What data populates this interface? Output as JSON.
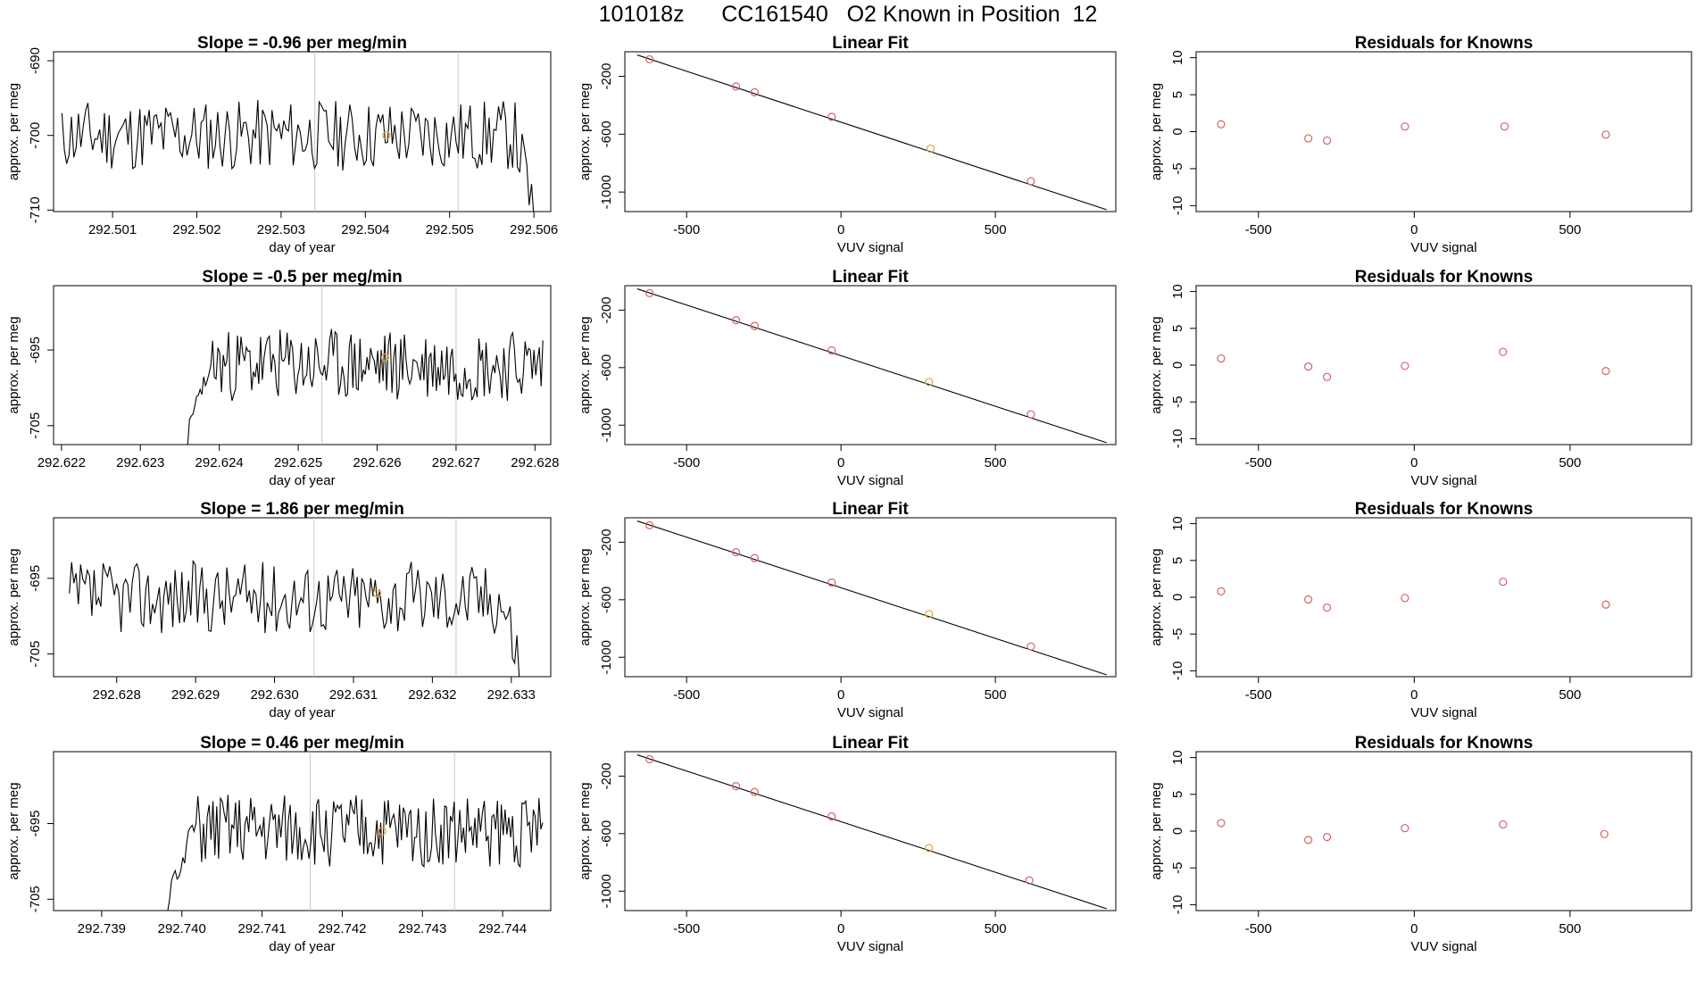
{
  "figure": {
    "title": "101018z      CC161540   O2 Known in Position  12"
  },
  "colors": {
    "trace": "#000000",
    "frame": "#000000",
    "vline": "#c8c8c8",
    "point": "#d26464",
    "highlight": "#e6a03c"
  },
  "chart_data": [
    {
      "type": "line",
      "title": "Slope =  -0.96  per meg/min",
      "xlabel": "day of year",
      "ylabel": "approx. per meg",
      "xlim": [
        292.5003,
        292.5062
      ],
      "ylim": [
        -710.2,
        -688.8
      ],
      "xticks": [
        292.501,
        292.502,
        292.503,
        292.504,
        292.505,
        292.506
      ],
      "xtick_labels": [
        "292.501",
        "292.502",
        "292.503",
        "292.504",
        "292.505",
        "292.506"
      ],
      "yticks": [
        -690,
        -700,
        -710
      ],
      "ytick_labels": [
        "-690",
        "-700",
        "-710"
      ],
      "vlines": [
        292.5034,
        292.5051
      ],
      "x_start": 292.5004,
      "x_end": 292.506,
      "y_start": -697,
      "y_end": -711,
      "base": -700,
      "amplitude": 3,
      "tail_drop": 10,
      "highlight_point": [
        292.50425,
        -700.0
      ],
      "seed": 11
    },
    {
      "type": "scatter",
      "title": "Linear Fit",
      "xlabel": "VUV signal",
      "ylabel": "approx. per meg",
      "xlim": [
        -700,
        890
      ],
      "ylim": [
        -1135,
        -30
      ],
      "xticks": [
        -500,
        0,
        500
      ],
      "xtick_labels": [
        "-500",
        "0",
        "500"
      ],
      "yticks": [
        -200,
        -600,
        -1000
      ],
      "ytick_labels": [
        "-200",
        "-600",
        "-1000"
      ],
      "fit_line": {
        "x": [
          -660,
          860
        ],
        "y": [
          -52,
          -1122
        ]
      },
      "points": [
        {
          "x": -620,
          "y": -82
        },
        {
          "x": -340,
          "y": -270
        },
        {
          "x": -280,
          "y": -310
        },
        {
          "x": -30,
          "y": -480
        },
        {
          "x": 290,
          "y": -700
        },
        {
          "x": 615,
          "y": -925
        }
      ],
      "highlight_index": 4
    },
    {
      "type": "scatter",
      "title": "Residuals for Knowns",
      "xlabel": "VUV signal",
      "ylabel": "approx. per meg",
      "xlim": [
        -700,
        890
      ],
      "ylim": [
        -10.8,
        10.8
      ],
      "xticks": [
        -500,
        0,
        500
      ],
      "xtick_labels": [
        "-500",
        "0",
        "500"
      ],
      "yticks": [
        10,
        5,
        0,
        -5,
        -10
      ],
      "ytick_labels": [
        "10",
        "5",
        "0",
        "-5",
        "-10"
      ],
      "points": [
        {
          "x": -620,
          "y": 1.0
        },
        {
          "x": -340,
          "y": -0.9
        },
        {
          "x": -280,
          "y": -1.2
        },
        {
          "x": -30,
          "y": 0.7
        },
        {
          "x": 290,
          "y": 0.7
        },
        {
          "x": 615,
          "y": -0.4
        }
      ]
    },
    {
      "type": "line",
      "title": "Slope =  -0.5  per meg/min",
      "xlabel": "day of year",
      "ylabel": "approx. per meg",
      "xlim": [
        292.6219,
        292.6282
      ],
      "ylim": [
        -707.5,
        -686.5
      ],
      "xticks": [
        292.622,
        292.623,
        292.624,
        292.625,
        292.626,
        292.627,
        292.628
      ],
      "xtick_labels": [
        "292.622",
        "292.623",
        "292.624",
        "292.625",
        "292.626",
        "292.627",
        "292.628"
      ],
      "yticks": [
        -695,
        -705
      ],
      "ytick_labels": [
        "-695",
        "-705"
      ],
      "vlines": [
        292.6253,
        292.627
      ],
      "x_start": 292.6236,
      "x_end": 292.6281,
      "y_start": -707.5,
      "y_end": -696,
      "base": -697,
      "amplitude": 3,
      "tail_drop": 0,
      "head_rise": -705,
      "highlight_point": [
        292.6261,
        -696.0
      ],
      "seed": 23
    },
    {
      "type": "scatter",
      "title": "Linear Fit",
      "xlabel": "VUV signal",
      "ylabel": "approx. per meg",
      "xlim": [
        -700,
        890
      ],
      "ylim": [
        -1135,
        -30
      ],
      "xticks": [
        -500,
        0,
        500
      ],
      "xtick_labels": [
        "-500",
        "0",
        "500"
      ],
      "yticks": [
        -200,
        -600,
        -1000
      ],
      "ytick_labels": [
        "-200",
        "-600",
        "-1000"
      ],
      "fit_line": {
        "x": [
          -660,
          860
        ],
        "y": [
          -52,
          -1122
        ]
      },
      "points": [
        {
          "x": -620,
          "y": -82
        },
        {
          "x": -340,
          "y": -270
        },
        {
          "x": -280,
          "y": -310
        },
        {
          "x": -30,
          "y": -480
        },
        {
          "x": 285,
          "y": -700
        },
        {
          "x": 615,
          "y": -925
        }
      ],
      "highlight_index": 4
    },
    {
      "type": "scatter",
      "title": "Residuals for Knowns",
      "xlabel": "VUV signal",
      "ylabel": "approx. per meg",
      "xlim": [
        -700,
        890
      ],
      "ylim": [
        -10.8,
        10.8
      ],
      "xticks": [
        -500,
        0,
        500
      ],
      "xtick_labels": [
        "-500",
        "0",
        "500"
      ],
      "yticks": [
        10,
        5,
        0,
        -5,
        -10
      ],
      "ytick_labels": [
        "10",
        "5",
        "0",
        "-5",
        "-10"
      ],
      "points": [
        {
          "x": -620,
          "y": 0.9
        },
        {
          "x": -340,
          "y": -0.2
        },
        {
          "x": -280,
          "y": -1.6
        },
        {
          "x": -30,
          "y": -0.1
        },
        {
          "x": 285,
          "y": 1.8
        },
        {
          "x": 615,
          "y": -0.8
        }
      ]
    },
    {
      "type": "line",
      "title": "Slope =  1.86  per meg/min",
      "xlabel": "day of year",
      "ylabel": "approx. per meg",
      "xlim": [
        292.6272,
        292.6335
      ],
      "ylim": [
        -708,
        -687
      ],
      "xticks": [
        292.628,
        292.629,
        292.63,
        292.631,
        292.632,
        292.633
      ],
      "xtick_labels": [
        "292.628",
        "292.629",
        "292.630",
        "292.631",
        "292.632",
        "292.633"
      ],
      "yticks": [
        -695,
        -705
      ],
      "ytick_labels": [
        "-695",
        "-705"
      ],
      "vlines": [
        292.6305,
        292.6323
      ],
      "x_start": 292.6274,
      "x_end": 292.6331,
      "y_start": -697,
      "y_end": -708,
      "base": -697.5,
      "amplitude": 3,
      "tail_drop": 8,
      "highlight_point": [
        292.6313,
        -697.0
      ],
      "seed": 37
    },
    {
      "type": "scatter",
      "title": "Linear Fit",
      "xlabel": "VUV signal",
      "ylabel": "approx. per meg",
      "xlim": [
        -700,
        890
      ],
      "ylim": [
        -1135,
        -30
      ],
      "xticks": [
        -500,
        0,
        500
      ],
      "xtick_labels": [
        "-500",
        "0",
        "500"
      ],
      "yticks": [
        -200,
        -600,
        -1000
      ],
      "ytick_labels": [
        "-200",
        "-600",
        "-1000"
      ],
      "fit_line": {
        "x": [
          -660,
          860
        ],
        "y": [
          -52,
          -1122
        ]
      },
      "points": [
        {
          "x": -620,
          "y": -82
        },
        {
          "x": -340,
          "y": -270
        },
        {
          "x": -280,
          "y": -310
        },
        {
          "x": -30,
          "y": -480
        },
        {
          "x": 285,
          "y": -700
        },
        {
          "x": 615,
          "y": -925
        }
      ],
      "highlight_index": 4
    },
    {
      "type": "scatter",
      "title": "Residuals for Knowns",
      "xlabel": "VUV signal",
      "ylabel": "approx. per meg",
      "xlim": [
        -700,
        890
      ],
      "ylim": [
        -10.8,
        10.8
      ],
      "xticks": [
        10,
        5,
        0,
        -5,
        -10
      ],
      "xtick_labels": [],
      "yticks": [
        10,
        5,
        0,
        -5,
        -10
      ],
      "ytick_labels": [
        "10",
        "5",
        "0",
        "-5",
        "-10"
      ],
      "points": [
        {
          "x": -620,
          "y": 0.8
        },
        {
          "x": -340,
          "y": -0.3
        },
        {
          "x": -280,
          "y": -1.4
        },
        {
          "x": -30,
          "y": -0.1
        },
        {
          "x": 285,
          "y": 2.1
        },
        {
          "x": 615,
          "y": -1.0
        }
      ]
    },
    {
      "type": "line",
      "title": "Slope =  0.46  per meg/min",
      "xlabel": "day of year",
      "ylabel": "approx. per meg",
      "xlim": [
        292.7384,
        292.7446
      ],
      "ylim": [
        -706.5,
        -685.5
      ],
      "xticks": [
        292.739,
        292.74,
        292.741,
        292.742,
        292.743,
        292.744
      ],
      "xtick_labels": [
        "292.739",
        "292.740",
        "292.741",
        "292.742",
        "292.743",
        "292.744"
      ],
      "yticks": [
        -695,
        -705
      ],
      "ytick_labels": [
        "-695",
        "-705"
      ],
      "vlines": [
        292.7416,
        292.7434
      ],
      "x_start": 292.7398,
      "x_end": 292.7445,
      "y_start": -706.5,
      "y_end": -694,
      "base": -696,
      "amplitude": 3,
      "tail_drop": 0,
      "head_rise": -706,
      "highlight_point": [
        292.7425,
        -696.0
      ],
      "seed": 51
    },
    {
      "type": "scatter",
      "title": "Linear Fit",
      "xlabel": "VUV signal",
      "ylabel": "approx. per meg",
      "xlim": [
        -700,
        890
      ],
      "ylim": [
        -1135,
        -30
      ],
      "xticks": [
        -500,
        0,
        500
      ],
      "xtick_labels": [
        "-500",
        "0",
        "500"
      ],
      "yticks": [
        -200,
        -600,
        -1000
      ],
      "ytick_labels": [
        "-200",
        "-600",
        "-1000"
      ],
      "fit_line": {
        "x": [
          -660,
          860
        ],
        "y": [
          -52,
          -1122
        ]
      },
      "points": [
        {
          "x": -620,
          "y": -82
        },
        {
          "x": -340,
          "y": -270
        },
        {
          "x": -280,
          "y": -310
        },
        {
          "x": -30,
          "y": -480
        },
        {
          "x": 285,
          "y": -700
        },
        {
          "x": 610,
          "y": -925
        }
      ],
      "highlight_index": 4
    },
    {
      "type": "scatter",
      "title": "Residuals for Knowns",
      "xlabel": "VUV signal",
      "ylabel": "approx. per meg",
      "xlim": [
        -700,
        890
      ],
      "ylim": [
        -10.8,
        10.8
      ],
      "xticks": [
        -500,
        0,
        500
      ],
      "xtick_labels": [
        "-500",
        "0",
        "500"
      ],
      "yticks": [
        10,
        5,
        0,
        -5,
        -10
      ],
      "ytick_labels": [
        "10",
        "5",
        "0",
        "-5",
        "-10"
      ],
      "points": [
        {
          "x": -620,
          "y": 1.1
        },
        {
          "x": -340,
          "y": -1.2
        },
        {
          "x": -280,
          "y": -0.8
        },
        {
          "x": -30,
          "y": 0.4
        },
        {
          "x": 285,
          "y": 0.9
        },
        {
          "x": 610,
          "y": -0.4
        }
      ]
    }
  ]
}
